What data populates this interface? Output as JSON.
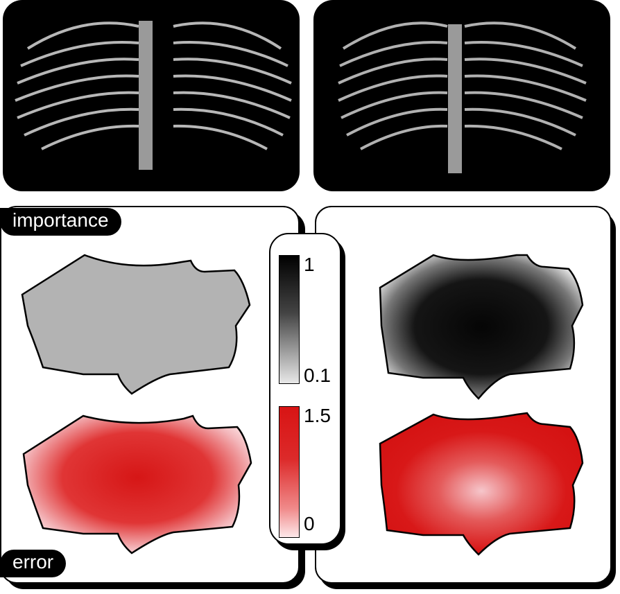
{
  "labels": {
    "importance": "importance",
    "error": "error"
  },
  "legend": {
    "importance_max": "1",
    "importance_min": "0.1",
    "error_max": "1.5",
    "error_min": "0"
  },
  "colors": {
    "background": "#000000",
    "importance_high": "#000000",
    "importance_low": "#e8e8e8",
    "importance_uniform": "#b3b3b3",
    "error_high": "#d81414",
    "error_low": "#fde8ea"
  }
}
